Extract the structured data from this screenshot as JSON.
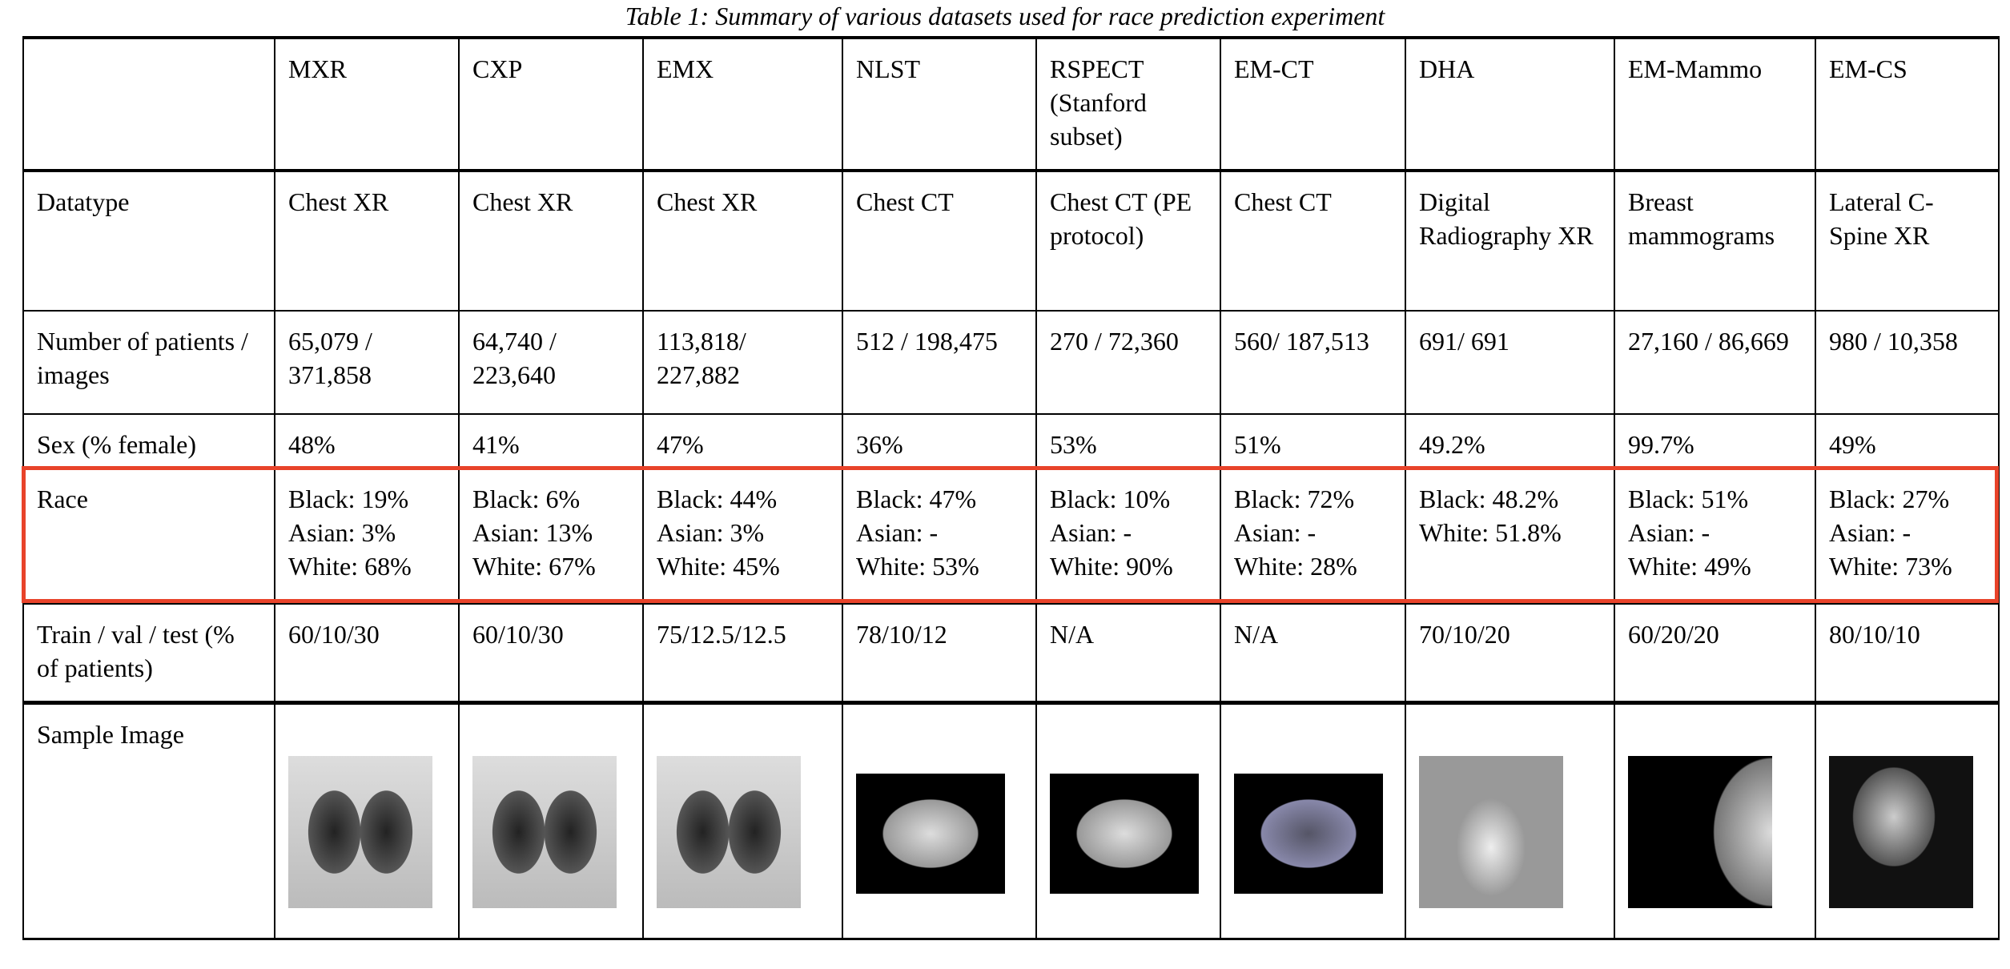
{
  "caption": "Table 1: Summary of various datasets used for race prediction experiment",
  "columns": [
    "MXR",
    "CXP",
    "EMX",
    "NLST",
    "RSPECT (Stanford subset)",
    "EM-CT",
    "DHA",
    "EM-Mammo",
    "EM-CS"
  ],
  "rows": [
    {
      "label": "Datatype",
      "values": [
        "Chest XR",
        "Chest XR",
        "Chest XR",
        "Chest CT",
        "Chest CT (PE protocol)",
        "Chest CT",
        "Digital Radiography XR",
        "Breast mammograms",
        "Lateral C-Spine XR"
      ]
    },
    {
      "label": "Number of patients / images",
      "values": [
        "65,079 / 371,858",
        "64,740 / 223,640",
        "113,818/ 227,882",
        "512 / 198,475",
        "270 / 72,360",
        "560/ 187,513",
        "691/ 691",
        "27,160 / 86,669",
        "980 / 10,358"
      ]
    },
    {
      "label": "Sex (% female)",
      "values": [
        "48%",
        "41%",
        "47%",
        "36%",
        "53%",
        "51%",
        "49.2%",
        "99.7%",
        "49%"
      ]
    },
    {
      "label": "Race",
      "values": [
        "Black: 19%\nAsian: 3%\nWhite: 68%",
        "Black: 6%\nAsian: 13%\nWhite: 67%",
        "Black: 44%\nAsian: 3%\nWhite: 45%",
        "Black: 47%\nAsian: -\nWhite: 53%",
        "Black: 10%\nAsian: -\nWhite: 90%",
        "Black: 72%\nAsian: -\nWhite: 28%",
        "Black: 48.2%\nWhite: 51.8%",
        "Black: 51%\nAsian: -\nWhite: 49%",
        "Black: 27%\nAsian: -\nWhite: 73%"
      ]
    },
    {
      "label": "Train / val / test (% of patients)",
      "values": [
        "60/10/30",
        "60/10/30",
        "75/12.5/12.5",
        "78/10/12",
        "N/A",
        "N/A",
        "70/10/20",
        "60/20/20",
        "80/10/10"
      ]
    }
  ],
  "sample_label": "Sample Image",
  "highlight_color": "#e8432a"
}
